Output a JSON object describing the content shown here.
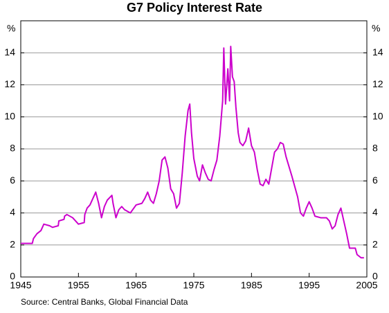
{
  "chart_data": {
    "type": "line",
    "title": "G7 Policy Interest Rate",
    "y_unit_left": "%",
    "y_unit_right": "%",
    "source": "Source: Central Banks, Global Financial Data",
    "x": [
      1945,
      1947,
      1947.2,
      1947.8,
      1948.5,
      1949,
      1950,
      1950.5,
      1951.5,
      1951.6,
      1952.5,
      1952.6,
      1953,
      1954,
      1955,
      1956,
      1956.1,
      1956.5,
      1957,
      1957.5,
      1958,
      1958.5,
      1959,
      1959.5,
      1960,
      1960.8,
      1961,
      1961.5,
      1962,
      1962.5,
      1963,
      1964,
      1965,
      1966,
      1966.5,
      1967,
      1967.5,
      1968,
      1968.5,
      1969,
      1969.5,
      1970,
      1970.5,
      1971,
      1971.5,
      1972,
      1972.5,
      1973,
      1973.5,
      1974,
      1974.3,
      1974.6,
      1975,
      1975.6,
      1976,
      1976.5,
      1977,
      1977.5,
      1978,
      1978.5,
      1979,
      1979.5,
      1980,
      1980.2,
      1980.5,
      1980.9,
      1981.2,
      1981.4,
      1981.7,
      1982,
      1982.3,
      1982.7,
      1983,
      1983.5,
      1984,
      1984.5,
      1985,
      1985.5,
      1986,
      1986.5,
      1987,
      1987.5,
      1988,
      1988.5,
      1989,
      1989.5,
      1990,
      1990.5,
      1991,
      1992,
      1993,
      1993.5,
      1994,
      1994.5,
      1995,
      1995.5,
      1996,
      1997,
      1998,
      1998.5,
      1999,
      1999.5,
      2000,
      2000.5,
      2001,
      2001.5,
      2002,
      2003,
      2003.3,
      2004,
      2004.5
    ],
    "series": [
      {
        "name": "G7 policy rate",
        "color": "#cc00cc",
        "values": [
          2.1,
          2.1,
          2.4,
          2.7,
          2.9,
          3.3,
          3.2,
          3.1,
          3.2,
          3.5,
          3.6,
          3.8,
          3.9,
          3.7,
          3.3,
          3.4,
          3.9,
          4.3,
          4.5,
          4.9,
          5.3,
          4.6,
          3.7,
          4.4,
          4.8,
          5.1,
          4.6,
          3.7,
          4.2,
          4.4,
          4.2,
          4.0,
          4.5,
          4.6,
          4.9,
          5.3,
          4.8,
          4.6,
          5.2,
          6.0,
          7.3,
          7.5,
          6.8,
          5.5,
          5.2,
          4.3,
          4.6,
          6.5,
          8.8,
          10.4,
          10.8,
          9.0,
          7.4,
          6.3,
          6.0,
          7.0,
          6.5,
          6.1,
          6.0,
          6.7,
          7.3,
          8.8,
          11.0,
          14.3,
          10.8,
          13.0,
          11.0,
          14.4,
          12.5,
          12.2,
          10.6,
          9.0,
          8.4,
          8.2,
          8.5,
          9.3,
          8.2,
          7.8,
          6.7,
          5.8,
          5.7,
          6.1,
          5.8,
          6.8,
          7.8,
          8.0,
          8.4,
          8.3,
          7.5,
          6.3,
          5.0,
          4.0,
          3.8,
          4.3,
          4.7,
          4.3,
          3.8,
          3.7,
          3.7,
          3.5,
          3.0,
          3.2,
          3.9,
          4.3,
          3.5,
          2.7,
          1.8,
          1.8,
          1.4,
          1.2,
          1.2
        ]
      }
    ],
    "xlim": [
      1945,
      2005
    ],
    "xticks": [
      1945,
      1955,
      1965,
      1975,
      1985,
      1995,
      2005
    ],
    "ylim": [
      0,
      16
    ],
    "yticks": [
      0,
      2,
      4,
      6,
      8,
      10,
      12,
      14
    ],
    "grid": true
  }
}
